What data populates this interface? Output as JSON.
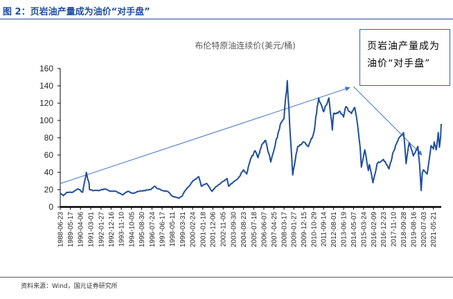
{
  "header": {
    "figure_title": "图 2：页岩油产量成为油价“对手盘”"
  },
  "callout": {
    "line1": "页岩油产量成为",
    "line2": "油价“对手盘”"
  },
  "footer": {
    "source": "资料来源：Wind，国元证券研究所"
  },
  "colors": {
    "series": "#1f4e9c",
    "header": "#1f4e9c",
    "axis": "#000000",
    "trend_arrow": "#4472c4"
  },
  "chart_data": {
    "type": "line",
    "title": "布伦特原油连续价(美元/桶)",
    "xlabel": "",
    "ylabel": "",
    "ylim": [
      0,
      160
    ],
    "yticks": [
      0,
      20,
      40,
      60,
      80,
      100,
      120,
      140,
      160
    ],
    "grid": false,
    "legend": "none",
    "xtick_labels": [
      "1988-06-23",
      "1989-05-17",
      "1990-04-06",
      "1991-03-01",
      "1992-01-27",
      "1992-12-16",
      "1993-11-10",
      "1994-10-05",
      "1995-08-30",
      "1996-07-24",
      "1997-06-17",
      "1998-05-11",
      "1999-03-31",
      "2000-02-24",
      "2001-01-18",
      "2001-12-06",
      "2002-11-05",
      "2003-09-30",
      "2004-08-23",
      "2005-07-18",
      "2006-06-07",
      "2007-04-25",
      "2008-03-17",
      "2009-01-27",
      "2009-12-15",
      "2010-10-29",
      "2011-09-14",
      "2012-08-01",
      "2013-06-19",
      "2014-05-07",
      "2015-03-24",
      "2016-02-09",
      "2016-12-23",
      "2017-11-10",
      "2018-09-28",
      "2019-08-16",
      "2020-07-03",
      "2021-05-21"
    ],
    "series": [
      {
        "values": [
          [
            "1988-06-23",
            16
          ],
          [
            "1988-10-01",
            13
          ],
          [
            "1989-02-01",
            17
          ],
          [
            "1989-08-01",
            17
          ],
          [
            "1990-01-15",
            21
          ],
          [
            "1990-06-15",
            17
          ],
          [
            "1990-08-20",
            30
          ],
          [
            "1990-10-10",
            40
          ],
          [
            "1990-11-20",
            33
          ],
          [
            "1991-01-10",
            27
          ],
          [
            "1991-01-20",
            20
          ],
          [
            "1991-06-01",
            19
          ],
          [
            "1991-12-01",
            19
          ],
          [
            "1992-06-01",
            21
          ],
          [
            "1992-12-01",
            18
          ],
          [
            "1993-06-01",
            18
          ],
          [
            "1993-12-20",
            14
          ],
          [
            "1994-06-01",
            18
          ],
          [
            "1994-12-01",
            16
          ],
          [
            "1995-06-01",
            18
          ],
          [
            "1995-12-01",
            19
          ],
          [
            "1996-06-01",
            20
          ],
          [
            "1996-10-15",
            24
          ],
          [
            "1997-02-01",
            21
          ],
          [
            "1997-07-01",
            19
          ],
          [
            "1997-12-01",
            18
          ],
          [
            "1998-06-01",
            12
          ],
          [
            "1998-12-15",
            10
          ],
          [
            "1999-03-31",
            13
          ],
          [
            "1999-07-01",
            19
          ],
          [
            "1999-12-01",
            25
          ],
          [
            "2000-03-01",
            30
          ],
          [
            "2000-09-10",
            35
          ],
          [
            "2000-12-01",
            24
          ],
          [
            "2001-06-01",
            27
          ],
          [
            "2001-11-10",
            18
          ],
          [
            "2002-03-01",
            23
          ],
          [
            "2002-09-01",
            28
          ],
          [
            "2003-03-10",
            33
          ],
          [
            "2003-04-30",
            24
          ],
          [
            "2003-10-01",
            29
          ],
          [
            "2004-03-01",
            33
          ],
          [
            "2004-08-23",
            43
          ],
          [
            "2004-12-01",
            38
          ],
          [
            "2005-04-01",
            55
          ],
          [
            "2005-09-01",
            65
          ],
          [
            "2005-12-01",
            57
          ],
          [
            "2006-04-01",
            72
          ],
          [
            "2006-08-01",
            77
          ],
          [
            "2007-01-15",
            52
          ],
          [
            "2007-06-01",
            70
          ],
          [
            "2007-11-15",
            95
          ],
          [
            "2008-03-17",
            102
          ],
          [
            "2008-07-03",
            146
          ],
          [
            "2008-09-15",
            95
          ],
          [
            "2008-12-24",
            37
          ],
          [
            "2009-01-27",
            45
          ],
          [
            "2009-06-01",
            70
          ],
          [
            "2009-12-15",
            75
          ],
          [
            "2010-05-15",
            70
          ],
          [
            "2010-10-29",
            85
          ],
          [
            "2011-04-08",
            126
          ],
          [
            "2011-09-14",
            110
          ],
          [
            "2012-03-01",
            126
          ],
          [
            "2012-06-22",
            89
          ],
          [
            "2012-08-01",
            108
          ],
          [
            "2013-03-01",
            110
          ],
          [
            "2013-06-19",
            104
          ],
          [
            "2013-09-01",
            116
          ],
          [
            "2014-03-01",
            108
          ],
          [
            "2014-06-15",
            115
          ],
          [
            "2014-09-01",
            98
          ],
          [
            "2014-12-01",
            70
          ],
          [
            "2015-01-13",
            46
          ],
          [
            "2015-05-01",
            66
          ],
          [
            "2015-08-25",
            42
          ],
          [
            "2015-10-01",
            49
          ],
          [
            "2016-01-20",
            28
          ],
          [
            "2016-06-01",
            50
          ],
          [
            "2016-12-23",
            55
          ],
          [
            "2017-06-21",
            44
          ],
          [
            "2017-11-10",
            64
          ],
          [
            "2018-05-20",
            80
          ],
          [
            "2018-10-03",
            86
          ],
          [
            "2018-12-24",
            50
          ],
          [
            "2019-04-01",
            74
          ],
          [
            "2019-08-16",
            59
          ],
          [
            "2019-12-01",
            67
          ],
          [
            "2020-01-06",
            70
          ],
          [
            "2020-03-01",
            50
          ],
          [
            "2020-04-21",
            19
          ],
          [
            "2020-06-01",
            40
          ],
          [
            "2020-07-03",
            43
          ],
          [
            "2020-11-01",
            38
          ],
          [
            "2021-01-08",
            55
          ],
          [
            "2021-03-08",
            71
          ],
          [
            "2021-05-21",
            67
          ],
          [
            "2021-06-15",
            75
          ],
          [
            "2021-08-20",
            66
          ],
          [
            "2021-10-25",
            86
          ],
          [
            "2021-11-30",
            69
          ],
          [
            "2022-01-10",
            82
          ],
          [
            "2022-01-28",
            96
          ]
        ]
      }
    ],
    "annotations": [
      {
        "type": "arrow",
        "from": [
          "1988-06-23",
          27
        ],
        "to": [
          "2014-01-01",
          138
        ]
      },
      {
        "type": "arrow",
        "from": [
          "2014-05-07",
          139
        ],
        "to": [
          "2020-05-15",
          60
        ]
      }
    ]
  }
}
